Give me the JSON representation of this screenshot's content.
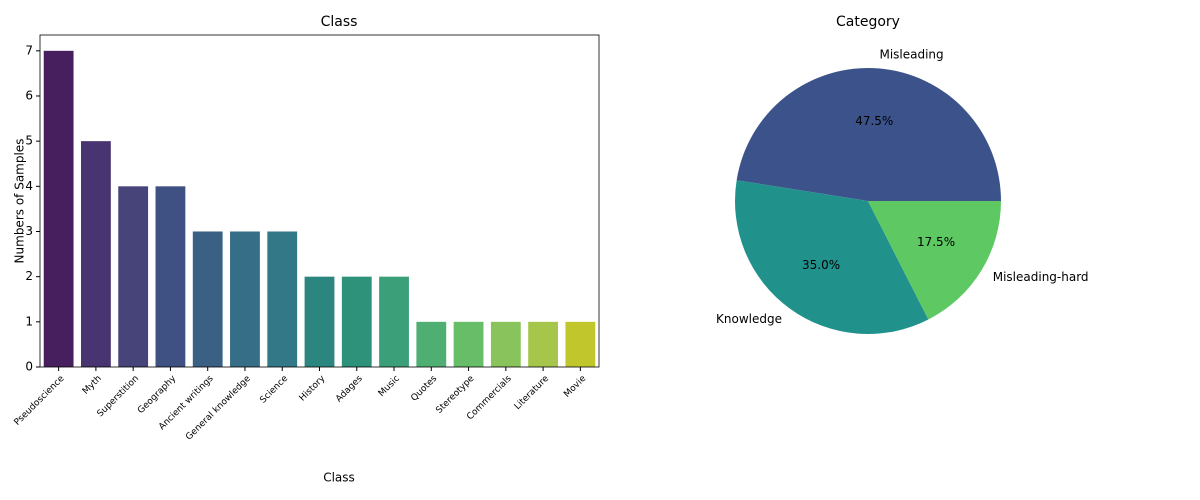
{
  "chart_data": [
    {
      "type": "bar",
      "title": "Class",
      "x_label": "Class",
      "y_label": "Numbers of Samples",
      "categories": [
        "Pseudoscience",
        "Myth",
        "Superstition",
        "Geography",
        "Ancient writings",
        "General knowledge",
        "Science",
        "History",
        "Adages",
        "Music",
        "Quotes",
        "Stereotype",
        "Commercials",
        "Literature",
        "Movie"
      ],
      "values": [
        7,
        5,
        4,
        4,
        3,
        3,
        3,
        2,
        2,
        2,
        1,
        1,
        1,
        1,
        1
      ],
      "colors": [
        "#471f5e",
        "#473470",
        "#464479",
        "#3f5183",
        "#3a6184",
        "#356e86",
        "#327886",
        "#2d8580",
        "#2e927b",
        "#3ba079",
        "#4fae72",
        "#68bd68",
        "#88c35b",
        "#a5c64a",
        "#c0c62c"
      ],
      "ylim": [
        0,
        7.35
      ],
      "yticks": [
        0,
        1,
        2,
        3,
        4,
        5,
        6,
        7
      ]
    },
    {
      "type": "pie",
      "title": "Category",
      "categories": [
        "Misleading",
        "Knowledge",
        "Misleading-hard"
      ],
      "values": [
        47.5,
        35.0,
        17.5
      ],
      "value_labels": [
        "47.5%",
        "35.0%",
        "17.5%"
      ],
      "colors": [
        "#3b528b",
        "#21918c",
        "#5ec962"
      ]
    }
  ]
}
